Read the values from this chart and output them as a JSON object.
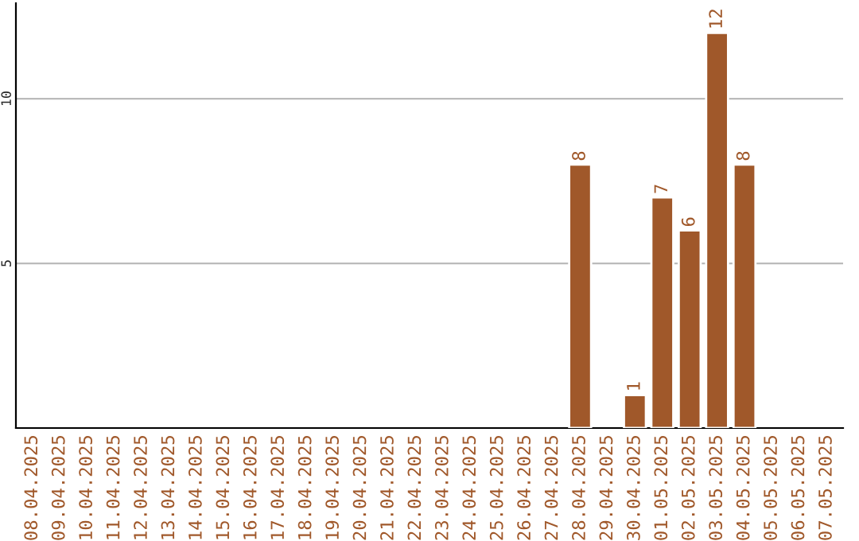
{
  "chart_data": {
    "type": "bar",
    "categories": [
      "08.04.2025",
      "09.04.2025",
      "10.04.2025",
      "11.04.2025",
      "12.04.2025",
      "13.04.2025",
      "14.04.2025",
      "15.04.2025",
      "16.04.2025",
      "17.04.2025",
      "18.04.2025",
      "19.04.2025",
      "20.04.2025",
      "21.04.2025",
      "22.04.2025",
      "23.04.2025",
      "24.04.2025",
      "25.04.2025",
      "26.04.2025",
      "27.04.2025",
      "28.04.2025",
      "29.04.2025",
      "30.04.2025",
      "01.05.2025",
      "02.05.2025",
      "03.05.2025",
      "04.05.2025",
      "05.05.2025",
      "06.05.2025",
      "07.05.2025"
    ],
    "values": [
      null,
      null,
      null,
      null,
      null,
      null,
      null,
      null,
      null,
      null,
      null,
      null,
      null,
      null,
      null,
      null,
      null,
      null,
      null,
      null,
      8,
      null,
      1,
      7,
      6,
      12,
      8,
      null,
      null,
      null
    ],
    "value_labels": [
      null,
      null,
      null,
      null,
      null,
      null,
      null,
      null,
      null,
      null,
      null,
      null,
      null,
      null,
      null,
      null,
      null,
      null,
      null,
      null,
      "8",
      null,
      "1",
      "7",
      "6",
      "12",
      "8",
      null,
      null,
      null
    ],
    "color": "#a0582a",
    "ylim": [
      0,
      12.9
    ],
    "yticks": [
      5,
      10
    ],
    "grid": "y",
    "legend": false
  }
}
